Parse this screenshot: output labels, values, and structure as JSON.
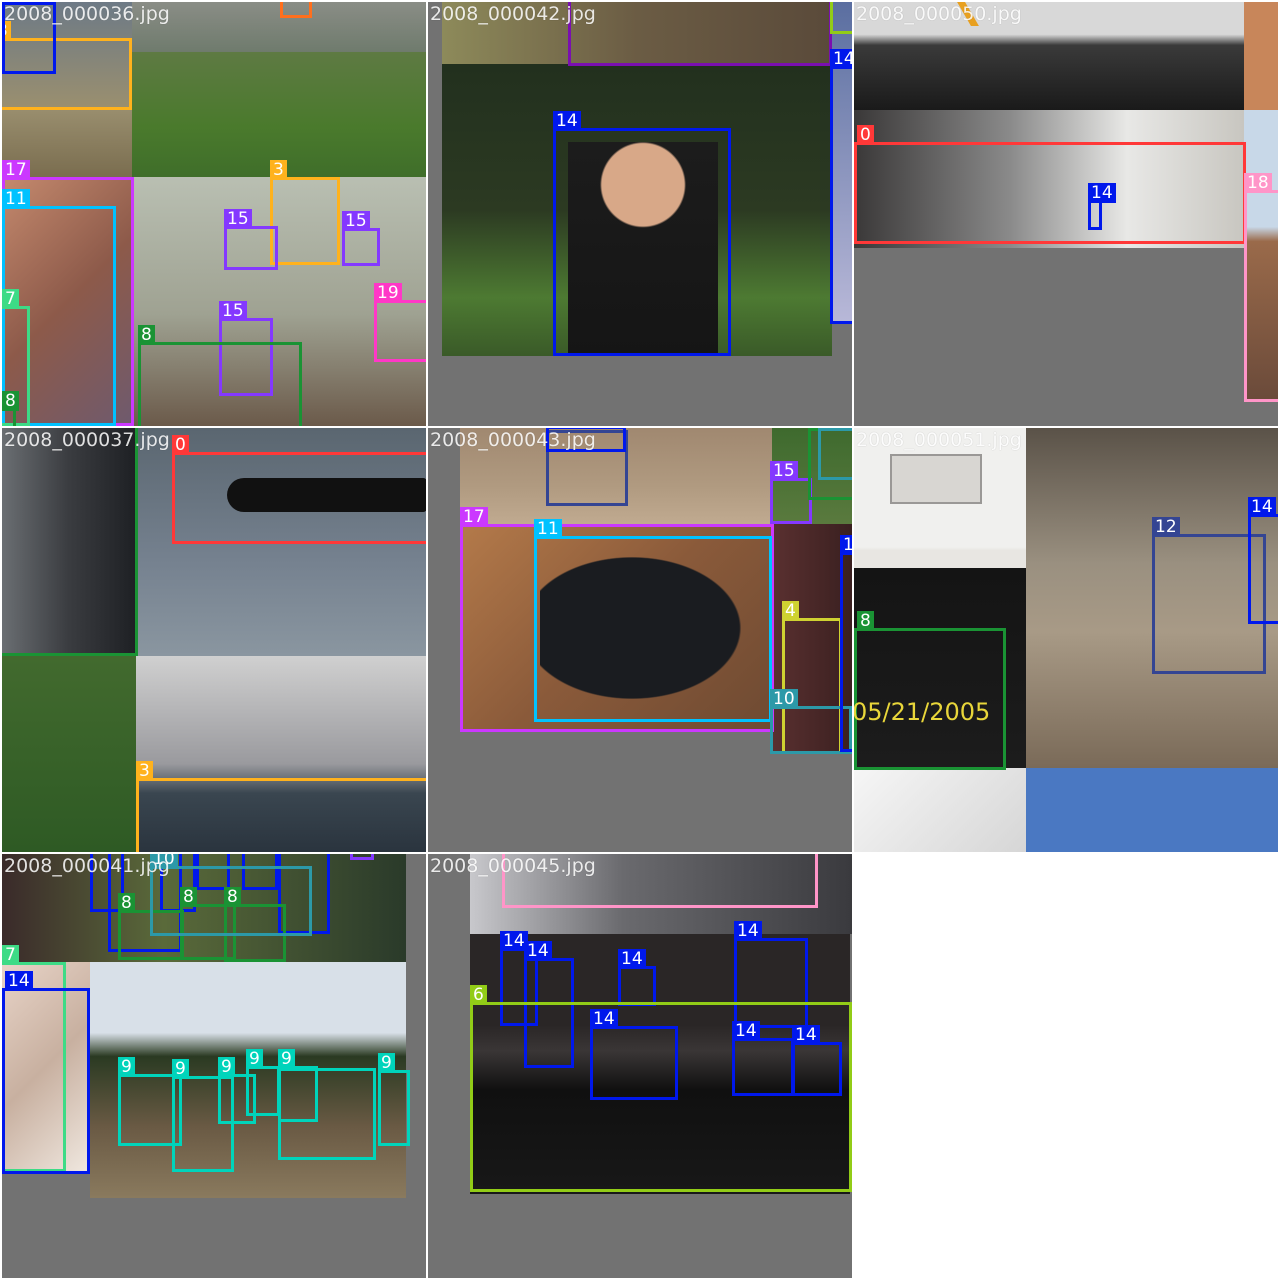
{
  "grid": {
    "tiles": [
      {
        "filename": "2008_000036.jpg"
      },
      {
        "filename": "2008_000042.jpg"
      },
      {
        "filename": "2008_000050.jpg"
      },
      {
        "filename": "2008_000037.jpg"
      },
      {
        "filename": "2008_000043.jpg"
      },
      {
        "filename": "2008_000051.jpg"
      },
      {
        "filename": "2008_000041.jpg"
      },
      {
        "filename": "2008_000045.jpg"
      }
    ]
  },
  "photo_text": {
    "date_stamp": "05/21/2005"
  },
  "class_colors": {
    "0": "#ff3838",
    "3": "#ffb21d",
    "4": "#cfd231",
    "6": "#92cc17",
    "7": "#3ddb86",
    "8": "#1a9334",
    "9": "#00d4bb",
    "10": "#2c99a8",
    "11": "#00c2ff",
    "12": "#344593",
    "14": "#0018ec",
    "15": "#8438ff",
    "17": "#cb38ff",
    "18": "#ff95c8",
    "19": "#ff37c7"
  }
}
